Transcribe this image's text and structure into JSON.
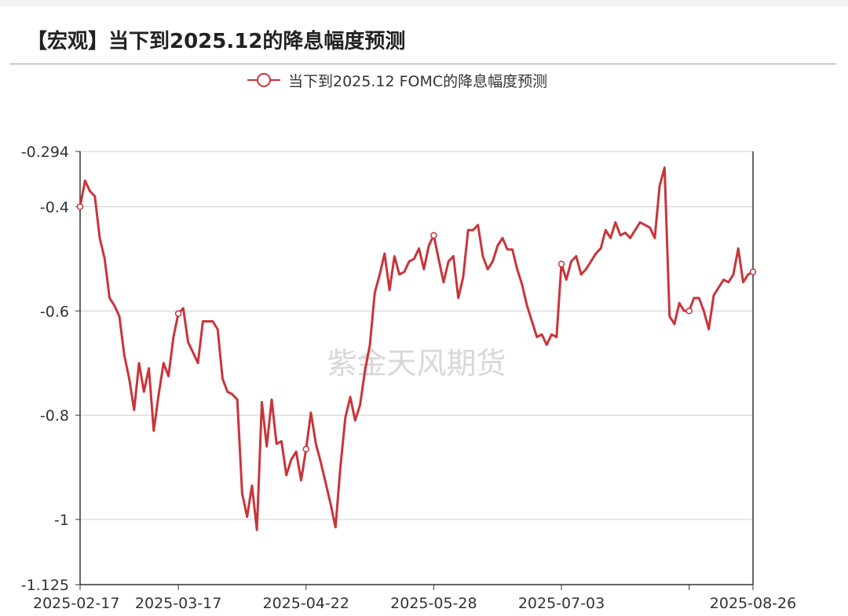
{
  "header": {
    "title": "【宏观】当下到2025.12的降息幅度预测"
  },
  "watermark": "紫金天风期货",
  "colors": {
    "series": "#c8353a",
    "grid": "#cccccc",
    "axis": "#333333",
    "title_rule": "#9a9a9a"
  },
  "chart_data": {
    "type": "line",
    "title": "【宏观】当下到2025.12的降息幅度预测",
    "xlabel": "",
    "ylabel": "",
    "ylim": [
      -1.125,
      -0.294
    ],
    "y_ticks": [
      "-0.294",
      "-0.4",
      "-0.6",
      "-0.8",
      "-1",
      "-1.125"
    ],
    "y_tick_values": [
      -0.294,
      -0.4,
      -0.6,
      -0.8,
      -1,
      -1.125
    ],
    "x_ticks": [
      "2025-02-17",
      "2025-03-17",
      "2025-04-22",
      "2025-05-28",
      "2025-07-03",
      "2025-08-26"
    ],
    "x_tick_indices": [
      0,
      20,
      46,
      72,
      98,
      137
    ],
    "extra_x_tick_indices": [
      124
    ],
    "legend_position": "top-center",
    "grid": true,
    "series": [
      {
        "name": "当下到2025.12 FOMC的降息幅度预测",
        "marker_indices": [
          0,
          20,
          46,
          72,
          98,
          124,
          137
        ],
        "values": [
          -0.4,
          -0.35,
          -0.37,
          -0.38,
          -0.46,
          -0.5,
          -0.575,
          -0.59,
          -0.61,
          -0.685,
          -0.73,
          -0.79,
          -0.7,
          -0.755,
          -0.71,
          -0.83,
          -0.76,
          -0.7,
          -0.725,
          -0.65,
          -0.605,
          -0.595,
          -0.66,
          -0.68,
          -0.7,
          -0.62,
          -0.62,
          -0.62,
          -0.635,
          -0.73,
          -0.755,
          -0.76,
          -0.77,
          -0.95,
          -0.995,
          -0.935,
          -1.02,
          -0.775,
          -0.86,
          -0.77,
          -0.855,
          -0.85,
          -0.915,
          -0.885,
          -0.87,
          -0.925,
          -0.865,
          -0.795,
          -0.855,
          -0.89,
          -0.93,
          -0.97,
          -1.015,
          -0.9,
          -0.805,
          -0.765,
          -0.81,
          -0.78,
          -0.715,
          -0.665,
          -0.565,
          -0.53,
          -0.49,
          -0.56,
          -0.495,
          -0.53,
          -0.525,
          -0.505,
          -0.5,
          -0.48,
          -0.52,
          -0.475,
          -0.455,
          -0.5,
          -0.545,
          -0.505,
          -0.495,
          -0.575,
          -0.535,
          -0.445,
          -0.445,
          -0.435,
          -0.495,
          -0.52,
          -0.505,
          -0.475,
          -0.46,
          -0.482,
          -0.482,
          -0.52,
          -0.55,
          -0.59,
          -0.62,
          -0.65,
          -0.645,
          -0.665,
          -0.645,
          -0.65,
          -0.51,
          -0.54,
          -0.505,
          -0.495,
          -0.53,
          -0.52,
          -0.505,
          -0.49,
          -0.48,
          -0.445,
          -0.46,
          -0.43,
          -0.455,
          -0.45,
          -0.46,
          -0.445,
          -0.43,
          -0.435,
          -0.44,
          -0.46,
          -0.36,
          -0.325,
          -0.61,
          -0.625,
          -0.585,
          -0.6,
          -0.6,
          -0.575,
          -0.575,
          -0.6,
          -0.635,
          -0.57,
          -0.555,
          -0.54,
          -0.545,
          -0.53,
          -0.48,
          -0.545,
          -0.53,
          -0.525
        ]
      }
    ]
  }
}
